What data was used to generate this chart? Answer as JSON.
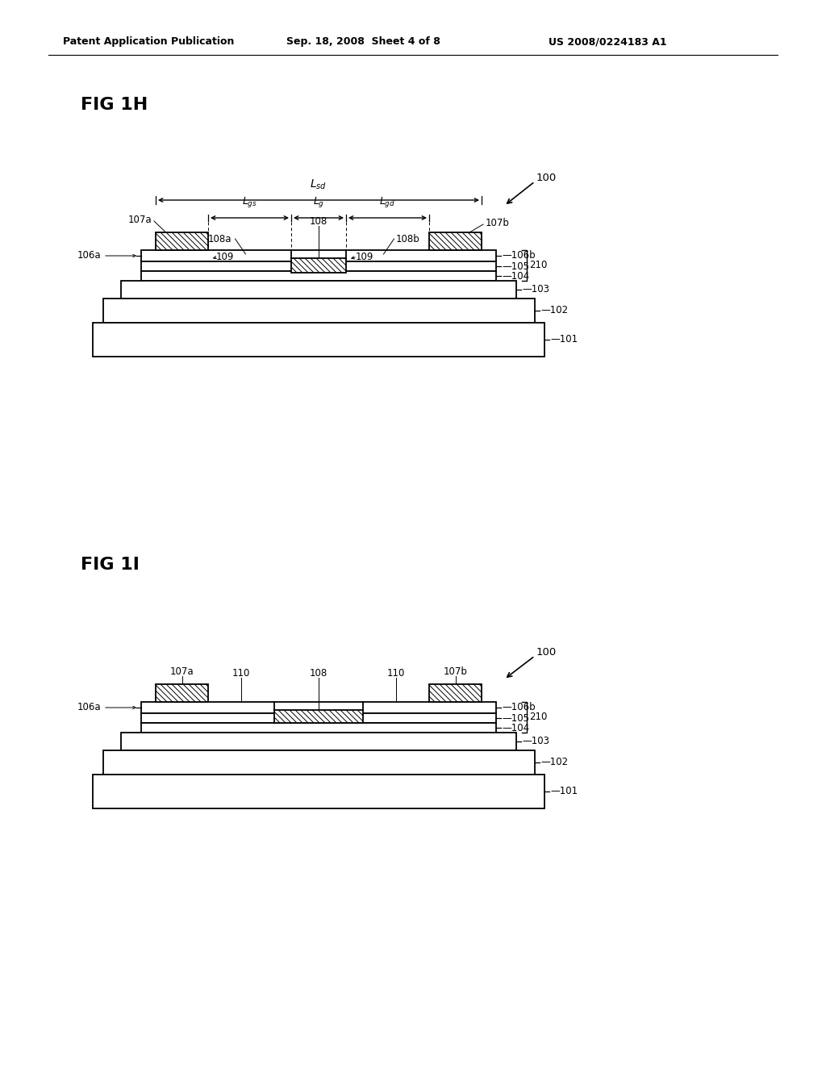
{
  "bg_color": "#ffffff",
  "header_left": "Patent Application Publication",
  "header_center": "Sep. 18, 2008  Sheet 4 of 8",
  "header_right": "US 2008/0224183 A1",
  "fig1h_label": "FIG 1H",
  "fig1i_label": "FIG 1I",
  "line_color": "#000000",
  "fig1h": {
    "ox": 175,
    "oy": 310,
    "layer_widths": [
      460,
      460,
      460,
      500,
      540,
      560
    ],
    "layer_heights": [
      14,
      12,
      12,
      22,
      30,
      40
    ],
    "layer_left_offsets": [
      0,
      0,
      0,
      -20,
      -40,
      -50
    ],
    "layer_labels_right": [
      "106b",
      "105",
      "104",
      "103",
      "102",
      "101"
    ],
    "bracket_layers": [
      0,
      2
    ],
    "bracket_label": "210"
  },
  "fig1i": {
    "ox": 175,
    "oy": 870,
    "layer_widths": [
      460,
      460,
      460,
      500,
      540,
      560
    ],
    "layer_heights": [
      14,
      12,
      12,
      22,
      30,
      40
    ],
    "layer_left_offsets": [
      0,
      0,
      0,
      -20,
      -40,
      -50
    ],
    "layer_labels_right": [
      "106b",
      "105",
      "104",
      "103",
      "102",
      "101"
    ],
    "bracket_layers": [
      0,
      2
    ],
    "bracket_label": "210"
  }
}
